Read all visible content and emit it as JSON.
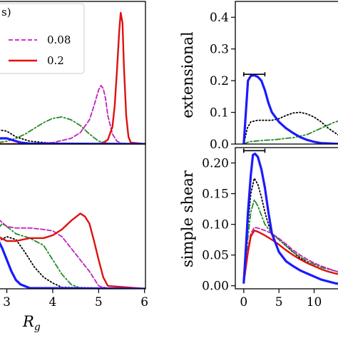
{
  "colors": {
    "blue": "#1a1aff",
    "black": "#000000",
    "green": "#228b22",
    "magenta": "#c020c0",
    "red": "#e01010"
  },
  "chart_data": [
    {
      "id": "top-left",
      "type": "line",
      "title": "",
      "xlabel": "",
      "ylabel": "",
      "xlim": [
        2.82,
        6.02
      ],
      "ylim": [
        0,
        1.0
      ],
      "xticks": [],
      "yticks": [],
      "legend": {
        "placement": "top-left",
        "header": "s)",
        "entries": [
          {
            "label": "0.08",
            "series": "magenta"
          },
          {
            "label": "0.2",
            "series": "red"
          }
        ]
      },
      "series": [
        {
          "id": "blue",
          "style": "solid",
          "x": [
            2.82,
            3.0,
            3.1,
            3.2,
            3.3,
            3.5,
            6.02
          ],
          "y": [
            0.04,
            0.04,
            0.03,
            0.02,
            0.01,
            0.003,
            0.0
          ]
        },
        {
          "id": "black",
          "style": "dotted",
          "x": [
            2.82,
            3.0,
            3.2,
            3.5,
            4.0,
            4.5,
            5.0,
            6.02
          ],
          "y": [
            0.1,
            0.09,
            0.05,
            0.02,
            0.005,
            0.002,
            0.0,
            0.0
          ]
        },
        {
          "id": "green",
          "style": "dashdot",
          "x": [
            2.82,
            3.0,
            3.2,
            3.4,
            3.6,
            3.8,
            4.0,
            4.2,
            4.4,
            4.6,
            4.8,
            5.0,
            5.2,
            6.02
          ],
          "y": [
            0.01,
            0.02,
            0.04,
            0.07,
            0.11,
            0.15,
            0.18,
            0.19,
            0.17,
            0.13,
            0.07,
            0.02,
            0.005,
            0.0
          ]
        },
        {
          "id": "magenta",
          "style": "dashed",
          "x": [
            2.82,
            3.5,
            4.0,
            4.4,
            4.6,
            4.8,
            4.9,
            5.0,
            5.05,
            5.1,
            5.15,
            5.2,
            5.3,
            5.4,
            5.5,
            6.02
          ],
          "y": [
            0.0,
            0.003,
            0.01,
            0.04,
            0.08,
            0.17,
            0.27,
            0.38,
            0.41,
            0.39,
            0.32,
            0.2,
            0.07,
            0.02,
            0.005,
            0.0
          ]
        },
        {
          "id": "red",
          "style": "solid",
          "x": [
            2.82,
            5.0,
            5.1,
            5.2,
            5.3,
            5.35,
            5.4,
            5.45,
            5.48,
            5.52,
            5.55,
            5.6,
            5.65,
            5.7,
            6.02
          ],
          "y": [
            0.0,
            0.0,
            0.01,
            0.03,
            0.12,
            0.27,
            0.52,
            0.8,
            0.92,
            0.85,
            0.55,
            0.2,
            0.05,
            0.01,
            0.0
          ]
        }
      ]
    },
    {
      "id": "bottom-left",
      "type": "line",
      "title": "",
      "xlabel": "R_g",
      "ylabel": "",
      "xlim": [
        2.82,
        6.02
      ],
      "ylim": [
        0,
        1.0
      ],
      "xticks": [
        3,
        4,
        5,
        6
      ],
      "xtick_labels": [
        "3",
        "4",
        "5",
        "6"
      ],
      "yticks": [],
      "series": [
        {
          "id": "blue",
          "style": "solid",
          "x": [
            2.82,
            2.9,
            3.0,
            3.1,
            3.2,
            3.3,
            3.5,
            6.02
          ],
          "y": [
            0.33,
            0.28,
            0.2,
            0.12,
            0.06,
            0.03,
            0.005,
            0.0
          ]
        },
        {
          "id": "black",
          "style": "dotted",
          "x": [
            2.82,
            3.0,
            3.2,
            3.4,
            3.6,
            3.8,
            4.0,
            4.2,
            6.02
          ],
          "y": [
            0.33,
            0.36,
            0.34,
            0.25,
            0.15,
            0.08,
            0.04,
            0.01,
            0.0
          ]
        },
        {
          "id": "green",
          "style": "dashdot",
          "x": [
            2.82,
            2.9,
            3.0,
            3.2,
            3.5,
            3.8,
            4.0,
            4.2,
            4.4,
            4.6,
            6.02
          ],
          "y": [
            0.42,
            0.45,
            0.43,
            0.38,
            0.35,
            0.3,
            0.2,
            0.1,
            0.03,
            0.005,
            0.0
          ]
        },
        {
          "id": "magenta",
          "style": "dashed",
          "x": [
            2.82,
            3.0,
            3.2,
            3.5,
            3.8,
            4.0,
            4.2,
            4.5,
            4.8,
            5.0,
            5.2,
            6.02
          ],
          "y": [
            0.48,
            0.43,
            0.42,
            0.42,
            0.41,
            0.4,
            0.36,
            0.24,
            0.12,
            0.02,
            0.003,
            0.0
          ]
        },
        {
          "id": "red",
          "style": "solid",
          "x": [
            2.82,
            3.0,
            3.2,
            3.5,
            3.8,
            4.0,
            4.2,
            4.4,
            4.6,
            4.7,
            4.8,
            4.9,
            5.0,
            5.1,
            5.2,
            6.02
          ],
          "y": [
            0.36,
            0.33,
            0.33,
            0.35,
            0.35,
            0.37,
            0.41,
            0.47,
            0.52,
            0.5,
            0.45,
            0.33,
            0.2,
            0.08,
            0.02,
            0.0
          ]
        }
      ]
    },
    {
      "id": "top-right",
      "type": "line",
      "title": "",
      "xlabel": "",
      "ylabel": "extensional",
      "xlim": [
        -1.2,
        14
      ],
      "ylim": [
        0,
        0.45
      ],
      "xticks": [],
      "yticks": [
        0.0,
        0.1,
        0.2,
        0.3,
        0.4
      ],
      "ytick_labels": [
        "0.0",
        "0.1",
        "0.2",
        "0.3",
        "0.4"
      ],
      "reference_bar": {
        "x": [
          0,
          3
        ],
        "y": 0.22
      },
      "series": [
        {
          "id": "blue",
          "style": "solid",
          "x": [
            0,
            0.3,
            0.6,
            1.0,
            1.5,
            2.0,
            2.5,
            3.0,
            3.5,
            4.0,
            5.0,
            6.0,
            7.0,
            8.0,
            9.0,
            10.0,
            11.0,
            12.0,
            13.0,
            14.0
          ],
          "y": [
            0.0,
            0.1,
            0.2,
            0.215,
            0.217,
            0.212,
            0.2,
            0.17,
            0.13,
            0.1,
            0.07,
            0.05,
            0.035,
            0.022,
            0.013,
            0.007,
            0.003,
            0.002,
            0.001,
            0.0
          ]
        },
        {
          "id": "black",
          "style": "dotted",
          "x": [
            0,
            0.5,
            1.0,
            2.0,
            3.0,
            4.0,
            5.0,
            6.0,
            7.0,
            8.0,
            9.0,
            10.0,
            11.0,
            12.0,
            13.0,
            14.0
          ],
          "y": [
            0.0,
            0.05,
            0.07,
            0.075,
            0.075,
            0.075,
            0.08,
            0.09,
            0.098,
            0.1,
            0.095,
            0.085,
            0.07,
            0.05,
            0.035,
            0.02
          ]
        },
        {
          "id": "green",
          "style": "dashdot",
          "x": [
            0,
            0.5,
            1.0,
            2.0,
            3.0,
            4.0,
            5.0,
            6.0,
            7.0,
            8.0,
            9.0,
            10.0,
            11.0,
            12.0,
            13.0,
            14.0
          ],
          "y": [
            0.0,
            0.005,
            0.008,
            0.01,
            0.012,
            0.013,
            0.015,
            0.018,
            0.02,
            0.025,
            0.03,
            0.04,
            0.05,
            0.06,
            0.07,
            0.075
          ]
        }
      ]
    },
    {
      "id": "bottom-right",
      "type": "line",
      "title": "",
      "xlabel": "",
      "ylabel": "simple shear",
      "xlim": [
        -1.2,
        14
      ],
      "ylim": [
        -0.005,
        0.225
      ],
      "xticks": [
        0,
        5,
        10
      ],
      "xtick_labels": [
        "0",
        "5",
        "10"
      ],
      "yticks": [
        0.0,
        0.05,
        0.1,
        0.15,
        0.2
      ],
      "ytick_labels": [
        "0.00",
        "0.05",
        "0.10",
        "0.15",
        "0.20"
      ],
      "reference_bar": {
        "x": [
          0,
          3
        ],
        "y": 0.22
      },
      "series": [
        {
          "id": "blue",
          "style": "solid",
          "x": [
            0,
            0.3,
            0.6,
            1.0,
            1.3,
            1.6,
            2.0,
            2.5,
            3.0,
            3.5,
            4.0,
            5.0,
            6.0,
            7.0,
            8.0,
            9.0,
            10.0,
            11.0,
            12.0,
            13.0,
            14.0
          ],
          "y": [
            0.005,
            0.06,
            0.12,
            0.18,
            0.213,
            0.215,
            0.21,
            0.19,
            0.16,
            0.12,
            0.085,
            0.055,
            0.04,
            0.032,
            0.025,
            0.02,
            0.015,
            0.01,
            0.007,
            0.004,
            0.002
          ]
        },
        {
          "id": "black",
          "style": "dotted",
          "x": [
            0,
            0.3,
            0.6,
            1.0,
            1.5,
            2.0,
            2.5,
            3.0,
            3.5,
            4.0,
            5.0,
            6.0,
            7.0,
            8.0,
            9.0,
            10.0,
            11.0,
            12.0,
            13.0,
            14.0
          ],
          "y": [
            0.005,
            0.05,
            0.1,
            0.15,
            0.175,
            0.165,
            0.145,
            0.12,
            0.1,
            0.085,
            0.075,
            0.065,
            0.055,
            0.045,
            0.038,
            0.032,
            0.027,
            0.023,
            0.02,
            0.017
          ]
        },
        {
          "id": "green",
          "style": "dashdot",
          "x": [
            0,
            0.3,
            0.6,
            1.0,
            1.5,
            2.0,
            2.5,
            3.0,
            4.0,
            5.0,
            6.0,
            7.0,
            8.0,
            9.0,
            10.0,
            11.0,
            12.0,
            13.0,
            14.0
          ],
          "y": [
            0.005,
            0.04,
            0.08,
            0.12,
            0.14,
            0.13,
            0.115,
            0.1,
            0.085,
            0.075,
            0.065,
            0.055,
            0.047,
            0.04,
            0.035,
            0.03,
            0.027,
            0.024,
            0.022
          ]
        },
        {
          "id": "magenta",
          "style": "dashed",
          "x": [
            0,
            0.3,
            0.6,
            1.0,
            1.5,
            2.0,
            3.0,
            4.0,
            5.0,
            6.0,
            7.0,
            8.0,
            9.0,
            10.0,
            11.0,
            12.0,
            13.0,
            14.0
          ],
          "y": [
            0.005,
            0.03,
            0.06,
            0.085,
            0.095,
            0.094,
            0.09,
            0.085,
            0.077,
            0.068,
            0.058,
            0.05,
            0.043,
            0.037,
            0.032,
            0.028,
            0.024,
            0.021
          ]
        },
        {
          "id": "red",
          "style": "solid",
          "x": [
            0,
            0.3,
            0.6,
            1.0,
            1.5,
            2.0,
            3.0,
            4.0,
            5.0,
            6.0,
            7.0,
            8.0,
            9.0,
            10.0,
            11.0,
            12.0,
            13.0,
            14.0
          ],
          "y": [
            0.005,
            0.03,
            0.055,
            0.08,
            0.09,
            0.088,
            0.082,
            0.075,
            0.067,
            0.058,
            0.05,
            0.043,
            0.037,
            0.032,
            0.027,
            0.023,
            0.02,
            0.018
          ]
        }
      ]
    }
  ]
}
